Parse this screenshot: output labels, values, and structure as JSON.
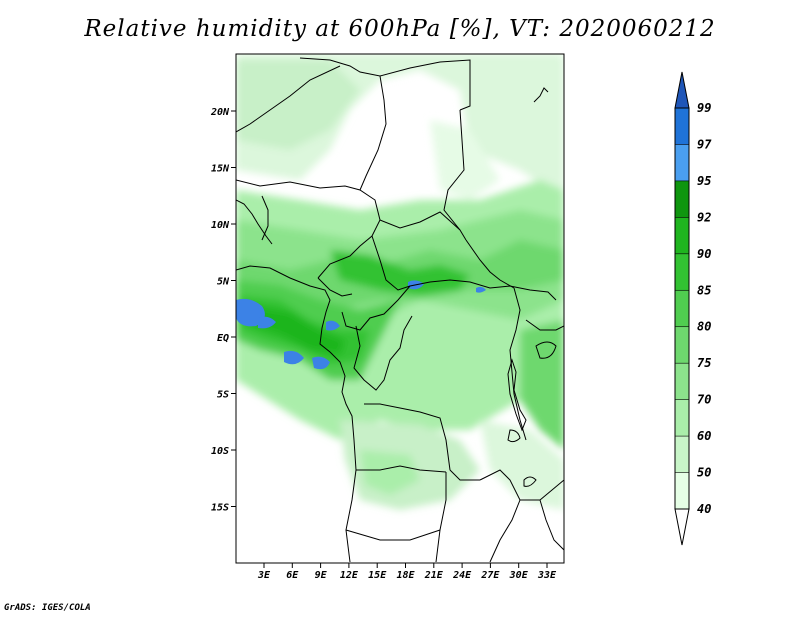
{
  "title": "Relative humidity at 600hPa [%], VT: 2020060212",
  "credit": "GrADS: IGES/COLA",
  "map": {
    "variable": "Relative humidity",
    "level": "600hPa",
    "units": "%",
    "valid_time": "2020060212",
    "lat_labels": [
      "20N",
      "15N",
      "10N",
      "5N",
      "EQ",
      "5S",
      "10S",
      "15S"
    ],
    "lon_labels": [
      "3E",
      "6E",
      "9E",
      "12E",
      "15E",
      "18E",
      "21E",
      "24E",
      "27E",
      "30E",
      "33E"
    ]
  },
  "colorbar": {
    "levels": [
      "40",
      "50",
      "60",
      "70",
      "75",
      "80",
      "85",
      "90",
      "92",
      "95",
      "97",
      "99"
    ],
    "colors": [
      "#ffffff",
      "#e6ffe6",
      "#c8f5c8",
      "#aaeeaa",
      "#8ce38c",
      "#6ed86e",
      "#50cd50",
      "#32c232",
      "#1fb51f",
      "#0f960f",
      "#4a9ff0",
      "#1f73d8",
      "#1f56b8"
    ]
  },
  "colors": {
    "border": "#000000",
    "moist_blue": "#3c82e6"
  }
}
